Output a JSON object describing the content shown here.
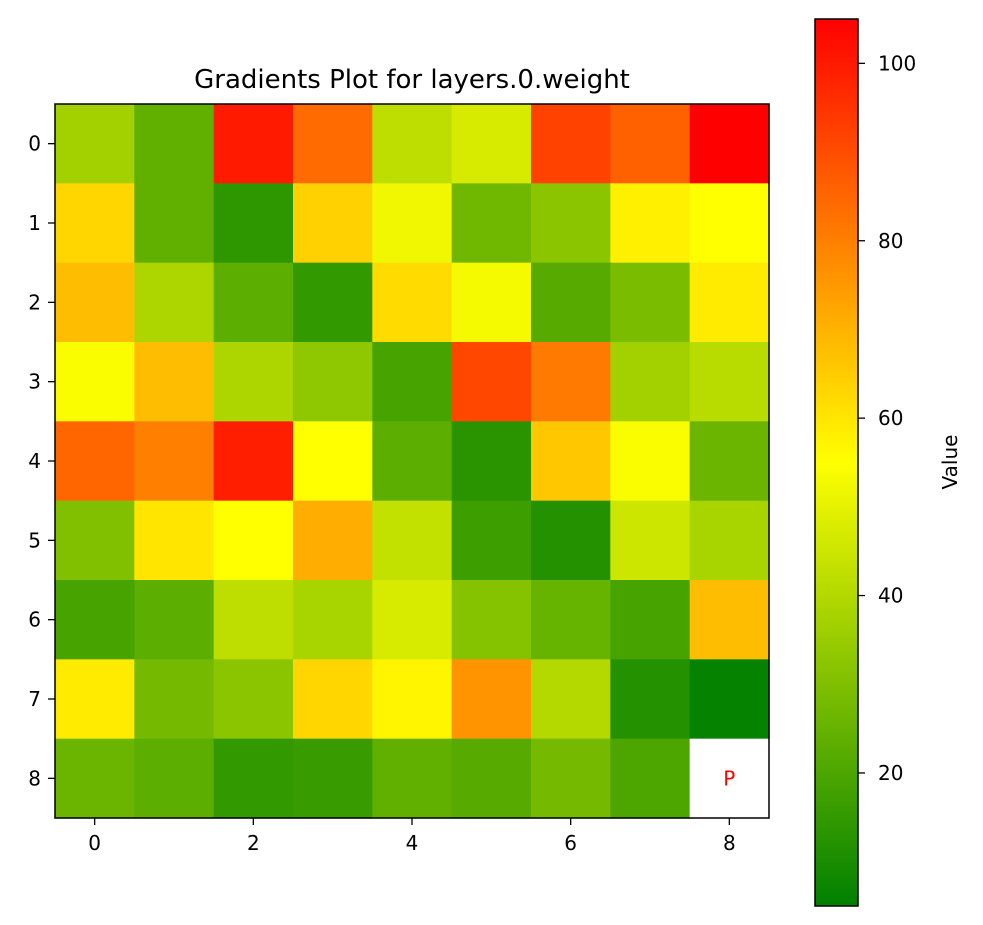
{
  "chart_data": {
    "type": "heatmap",
    "title": "Gradients Plot for layers.0.weight",
    "rows": [
      0,
      1,
      2,
      3,
      4,
      5,
      6,
      7,
      8
    ],
    "cols": [
      0,
      1,
      2,
      3,
      4,
      5,
      6,
      7,
      8
    ],
    "x_ticks": [
      0,
      2,
      4,
      6,
      8
    ],
    "y_ticks": [
      0,
      1,
      2,
      3,
      4,
      5,
      6,
      7,
      8
    ],
    "values": [
      [
        37,
        24,
        100,
        84,
        42,
        47,
        92,
        86,
        105
      ],
      [
        63,
        24,
        14,
        64,
        52,
        27,
        32,
        58,
        55
      ],
      [
        68,
        39,
        23,
        15,
        62,
        53,
        22,
        29,
        59
      ],
      [
        54,
        68,
        39,
        33,
        19,
        91,
        81,
        37,
        41
      ],
      [
        85,
        80,
        99,
        55,
        23,
        13,
        66,
        54,
        26
      ],
      [
        30,
        60,
        55,
        71,
        43,
        17,
        12,
        45,
        38
      ],
      [
        19,
        23,
        42,
        38,
        47,
        31,
        25,
        19,
        68
      ],
      [
        59,
        28,
        32,
        63,
        57,
        76,
        40,
        12,
        6
      ],
      [
        26,
        23,
        15,
        16,
        24,
        22,
        28,
        20,
        null
      ]
    ],
    "mask_label": "P",
    "mask_label_color": "#ff0000",
    "colormap": [
      "#008000",
      "#ffff00",
      "#ff0000"
    ],
    "vmin": 5,
    "vmax": 105,
    "colorbar": {
      "label": "Value",
      "ticks": [
        20,
        40,
        60,
        80,
        100
      ]
    },
    "legend": "none",
    "grid": false
  }
}
